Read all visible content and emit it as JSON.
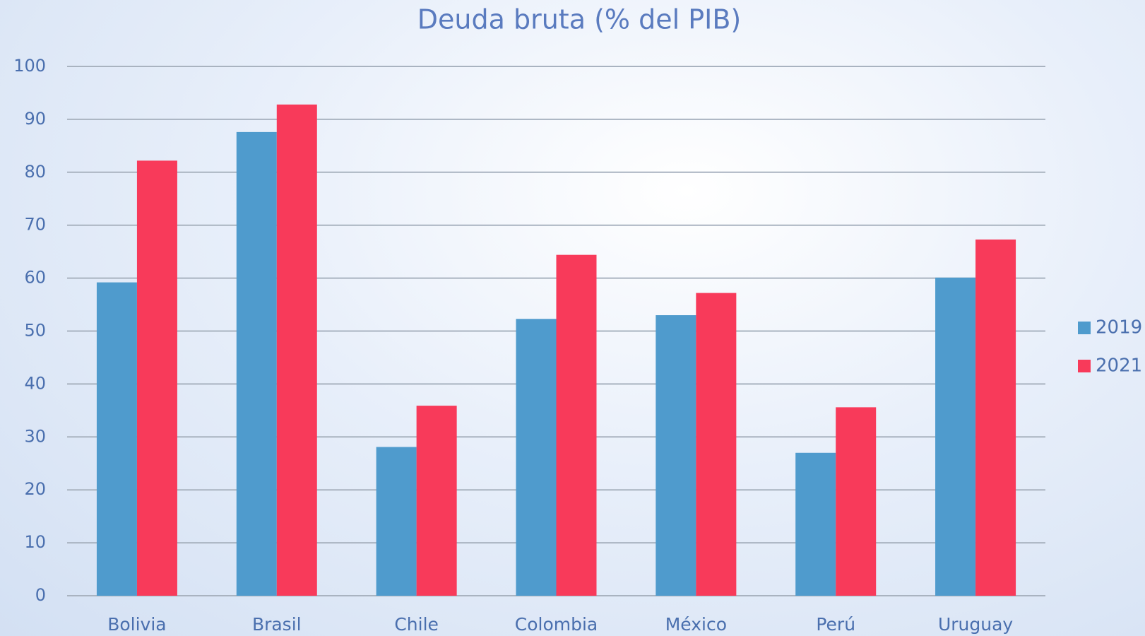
{
  "chart_data": {
    "type": "bar",
    "title": "Deuda bruta (% del PIB)",
    "categories": [
      "Bolivia",
      "Brasil",
      "Chile",
      "Colombia",
      "México",
      "Perú",
      "Uruguay"
    ],
    "series": [
      {
        "name": "2019",
        "color": "#4f9bcd",
        "values": [
          59.2,
          87.6,
          28.1,
          52.3,
          53,
          27,
          60.1
        ]
      },
      {
        "name": "2021",
        "color": "#f83a5a",
        "values": [
          82.2,
          92.8,
          35.9,
          64.4,
          57.2,
          35.6,
          67.3
        ]
      }
    ],
    "ylim": [
      0,
      100
    ],
    "yticks": [
      0,
      10,
      20,
      30,
      40,
      50,
      60,
      70,
      80,
      90,
      100
    ],
    "grid": true,
    "legend": "right"
  }
}
